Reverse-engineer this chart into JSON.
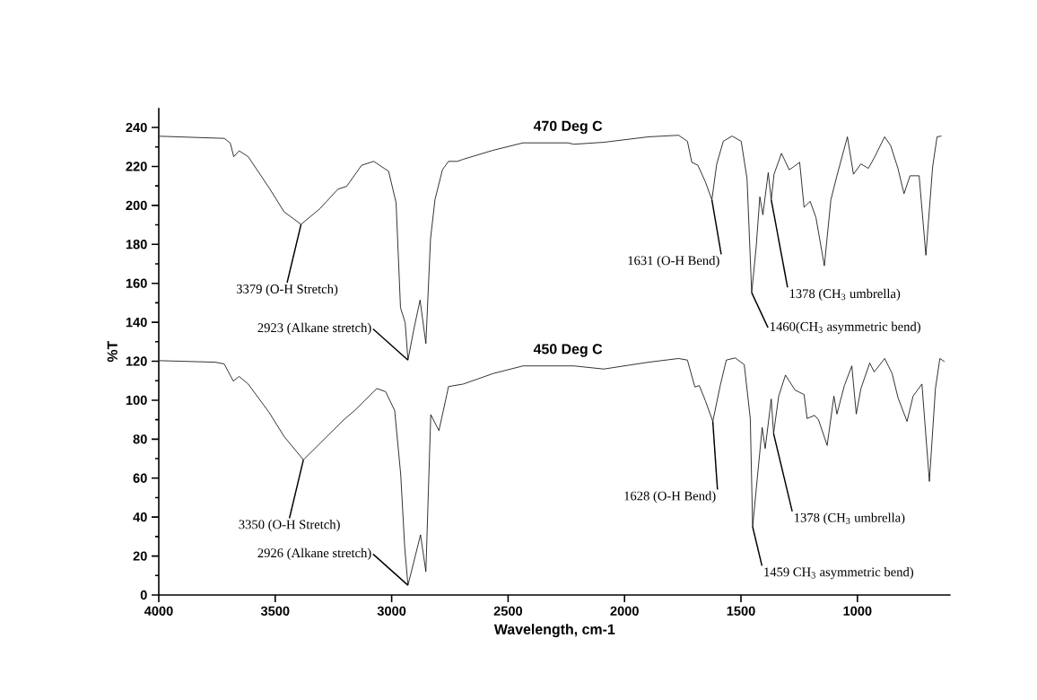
{
  "chart_data": {
    "type": "line",
    "xlabel": "Wavelength, cm-1",
    "ylabel": "%T",
    "xlim": [
      4000,
      600
    ],
    "ylim": [
      0,
      250
    ],
    "xticks": [
      4000,
      3500,
      3000,
      2500,
      2000,
      1500,
      1000
    ],
    "yticks": [
      0,
      20,
      40,
      60,
      80,
      100,
      120,
      140,
      160,
      180,
      200,
      220,
      240
    ],
    "legend": false,
    "grid": false,
    "marker": "none",
    "series": [
      {
        "name": "470 Deg C",
        "color": "#000000",
        "x": [
          3996,
          3719,
          3693,
          3678,
          3655,
          3616,
          3526,
          3462,
          3389,
          3308,
          3231,
          3193,
          3129,
          3077,
          3013,
          2981,
          2962,
          2942,
          2930,
          2904,
          2878,
          2853,
          2833,
          2814,
          2782,
          2756,
          2718,
          2692,
          2564,
          2436,
          2243,
          2218,
          2089,
          1897,
          1768,
          1730,
          1711,
          1685,
          1653,
          1625,
          1604,
          1576,
          1538,
          1499,
          1474,
          1454,
          1435,
          1419,
          1406,
          1383,
          1370,
          1358,
          1326,
          1293,
          1274,
          1248,
          1229,
          1203,
          1178,
          1142,
          1114,
          1088,
          1043,
          1017,
          985,
          953,
          928,
          883,
          857,
          826,
          800,
          774,
          735,
          706,
          677,
          658,
          639
        ],
        "values": [
          235.5,
          234.4,
          232,
          225,
          228,
          225,
          209,
          196.7,
          190.3,
          198.3,
          208.3,
          209.8,
          220.6,
          222.6,
          217.5,
          201.4,
          147.5,
          139.8,
          120.6,
          136.8,
          151.4,
          129.1,
          182.9,
          202.9,
          218.3,
          222.6,
          222.6,
          223.7,
          228.3,
          232.1,
          232.1,
          231.4,
          232.4,
          235.2,
          236,
          232.9,
          222.1,
          220.6,
          212.1,
          202.9,
          221.3,
          232.9,
          235.6,
          232.9,
          213.7,
          155.2,
          178.3,
          204.4,
          195.2,
          216.8,
          202.9,
          216,
          226.7,
          218.3,
          219.8,
          222.1,
          199,
          202.1,
          193.7,
          169,
          202.9,
          215.2,
          235.2,
          216,
          221.3,
          219,
          224.4,
          235.2,
          230.6,
          219,
          206,
          215.2,
          215.2,
          174.4,
          219.8,
          235.2,
          235.6
        ]
      },
      {
        "name": "450 Deg C",
        "color": "#000000",
        "x": [
          3996,
          3757,
          3719,
          3680,
          3655,
          3616,
          3526,
          3462,
          3379,
          3206,
          3159,
          3064,
          3026,
          2987,
          2961,
          2944,
          2930,
          2876,
          2853,
          2832,
          2797,
          2763,
          2756,
          2692,
          2564,
          2436,
          2243,
          2218,
          2089,
          1897,
          1768,
          1730,
          1698,
          1679,
          1653,
          1621,
          1589,
          1563,
          1525,
          1486,
          1460,
          1450,
          1409,
          1396,
          1370,
          1360,
          1338,
          1309,
          1268,
          1229,
          1216,
          1184,
          1167,
          1130,
          1101,
          1088,
          1056,
          1024,
          1005,
          985,
          947,
          928,
          883,
          851,
          826,
          787,
          761,
          723,
          691,
          665,
          646,
          626
        ],
        "values": [
          120.3,
          119.5,
          118.6,
          109.8,
          112.2,
          108.3,
          93.7,
          81.4,
          69.4,
          89.9,
          94.7,
          106,
          104.4,
          94.7,
          61.7,
          24.7,
          5,
          30.9,
          12,
          92.6,
          84.4,
          102.9,
          107,
          108.3,
          113.7,
          117.6,
          117.6,
          117.6,
          116,
          119.5,
          121.4,
          120.6,
          106.8,
          107.5,
          99.8,
          89.1,
          107.5,
          120.6,
          121.7,
          118.3,
          90.6,
          35,
          86,
          75.2,
          100.6,
          82.9,
          102.1,
          112.9,
          105.2,
          102.9,
          90.6,
          92.2,
          89.9,
          76.8,
          102.1,
          92.9,
          107.5,
          117.6,
          92.9,
          106,
          119.1,
          114.5,
          121.4,
          113.7,
          101.4,
          89.1,
          102.1,
          108.3,
          58.3,
          106,
          121.4,
          119.8
        ]
      }
    ],
    "annotations": [
      {
        "text": "3379 (O-H Stretch)",
        "x": 3389,
        "y": 190.3
      },
      {
        "text": "2923 (Alkane stretch)",
        "x": 2930,
        "y": 120.6
      },
      {
        "text": "1631 (O-H Bend)",
        "x": 1625,
        "y": 202.9
      },
      {
        "text": "1378 (CH$_{3}$ umbrella)",
        "x": 1370,
        "y": 202.9
      },
      {
        "text": "1460(CH$_{3}$ asymmetric bend)",
        "x": 1454,
        "y": 155.2
      },
      {
        "text": "3350 (O-H Stretch)",
        "x": 3379,
        "y": 69.4
      },
      {
        "text": "2926 (Alkane stretch)",
        "x": 2930,
        "y": 5
      },
      {
        "text": "1628 (O-H Bend)",
        "x": 1621,
        "y": 89.1
      },
      {
        "text": "1378 (CH$_{3}$ umbrella)",
        "x": 1360,
        "y": 82.9
      },
      {
        "text": "1459 CH$_{3}$ asymmetric bend)",
        "x": 1450,
        "y": 35
      }
    ]
  }
}
